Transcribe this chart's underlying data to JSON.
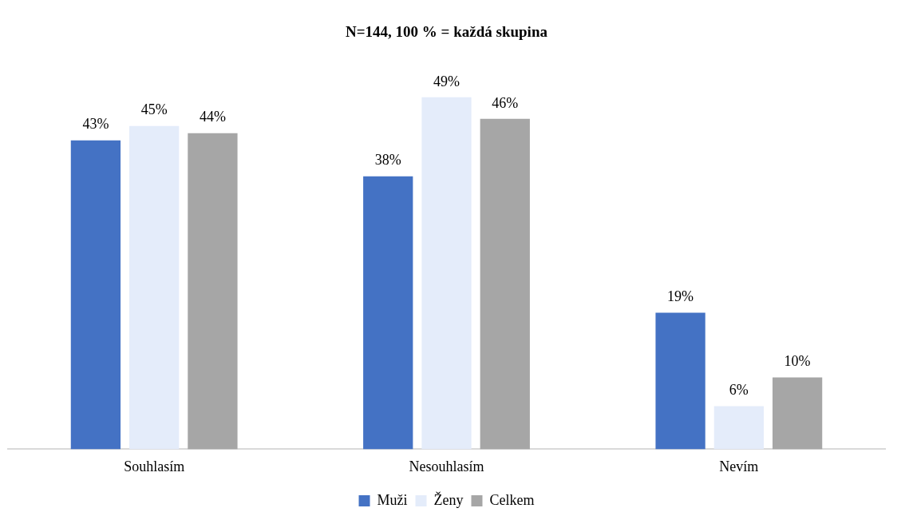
{
  "chart_data": {
    "type": "bar",
    "title": "N=144, 100 % = každá skupina",
    "categories": [
      "Souhlasím",
      "Nesouhlasím",
      "Nevím"
    ],
    "series": [
      {
        "name": "Muži",
        "color": "#4472c4",
        "values": [
          43,
          38,
          19
        ],
        "value_labels": [
          "43%",
          "38%",
          "19%"
        ]
      },
      {
        "name": "Ženy",
        "color": "#e4ecfa",
        "values": [
          45,
          49,
          6
        ],
        "value_labels": [
          "45%",
          "49%",
          "6%"
        ]
      },
      {
        "name": "Celkem",
        "color": "#a6a6a6",
        "values": [
          44,
          46,
          10
        ],
        "value_labels": [
          "44%",
          "46%",
          "10%"
        ]
      }
    ],
    "grid": false,
    "legend": "bottom"
  }
}
